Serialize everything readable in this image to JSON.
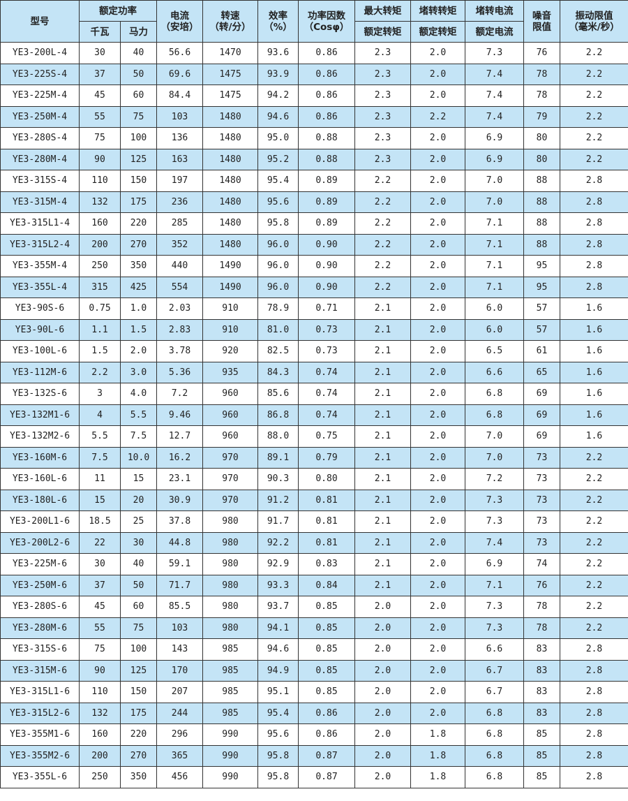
{
  "header": {
    "model": "型号",
    "rated_power": "额定功率",
    "kw": "千瓦",
    "hp": "马力",
    "current": "电流\n（安培）",
    "speed": "转速\n（转/分）",
    "efficiency": "效率\n（%）",
    "power_factor": "功率因数\n（Cosφ）",
    "max_torque_top": "最大转矩",
    "max_torque_bottom": "额定转矩",
    "locked_torque_top": "堵转转矩",
    "locked_torque_bottom": "额定转矩",
    "locked_current_top": "堵转电流",
    "locked_current_bottom": "额定电流",
    "noise": "噪音\n限值",
    "vibration": "振动限值\n（毫米/秒）"
  },
  "rows": [
    [
      "YE3-200L-4",
      "30",
      "40",
      "56.6",
      "1470",
      "93.6",
      "0.86",
      "2.3",
      "2.0",
      "7.3",
      "76",
      "2.2"
    ],
    [
      "YE3-225S-4",
      "37",
      "50",
      "69.6",
      "1475",
      "93.9",
      "0.86",
      "2.3",
      "2.0",
      "7.4",
      "78",
      "2.2"
    ],
    [
      "YE3-225M-4",
      "45",
      "60",
      "84.4",
      "1475",
      "94.2",
      "0.86",
      "2.3",
      "2.0",
      "7.4",
      "78",
      "2.2"
    ],
    [
      "YE3-250M-4",
      "55",
      "75",
      "103",
      "1480",
      "94.6",
      "0.86",
      "2.3",
      "2.2",
      "7.4",
      "79",
      "2.2"
    ],
    [
      "YE3-280S-4",
      "75",
      "100",
      "136",
      "1480",
      "95.0",
      "0.88",
      "2.3",
      "2.0",
      "6.9",
      "80",
      "2.2"
    ],
    [
      "YE3-280M-4",
      "90",
      "125",
      "163",
      "1480",
      "95.2",
      "0.88",
      "2.3",
      "2.0",
      "6.9",
      "80",
      "2.2"
    ],
    [
      "YE3-315S-4",
      "110",
      "150",
      "197",
      "1480",
      "95.4",
      "0.89",
      "2.2",
      "2.0",
      "7.0",
      "88",
      "2.8"
    ],
    [
      "YE3-315M-4",
      "132",
      "175",
      "236",
      "1480",
      "95.6",
      "0.89",
      "2.2",
      "2.0",
      "7.0",
      "88",
      "2.8"
    ],
    [
      "YE3-315L1-4",
      "160",
      "220",
      "285",
      "1480",
      "95.8",
      "0.89",
      "2.2",
      "2.0",
      "7.1",
      "88",
      "2.8"
    ],
    [
      "YE3-315L2-4",
      "200",
      "270",
      "352",
      "1480",
      "96.0",
      "0.90",
      "2.2",
      "2.0",
      "7.1",
      "88",
      "2.8"
    ],
    [
      "YE3-355M-4",
      "250",
      "350",
      "440",
      "1490",
      "96.0",
      "0.90",
      "2.2",
      "2.0",
      "7.1",
      "95",
      "2.8"
    ],
    [
      "YE3-355L-4",
      "315",
      "425",
      "554",
      "1490",
      "96.0",
      "0.90",
      "2.2",
      "2.0",
      "7.1",
      "95",
      "2.8"
    ],
    [
      "YE3-90S-6",
      "0.75",
      "1.0",
      "2.03",
      "910",
      "78.9",
      "0.71",
      "2.1",
      "2.0",
      "6.0",
      "57",
      "1.6"
    ],
    [
      "YE3-90L-6",
      "1.1",
      "1.5",
      "2.83",
      "910",
      "81.0",
      "0.73",
      "2.1",
      "2.0",
      "6.0",
      "57",
      "1.6"
    ],
    [
      "YE3-100L-6",
      "1.5",
      "2.0",
      "3.78",
      "920",
      "82.5",
      "0.73",
      "2.1",
      "2.0",
      "6.5",
      "61",
      "1.6"
    ],
    [
      "YE3-112M-6",
      "2.2",
      "3.0",
      "5.36",
      "935",
      "84.3",
      "0.74",
      "2.1",
      "2.0",
      "6.6",
      "65",
      "1.6"
    ],
    [
      "YE3-132S-6",
      "3",
      "4.0",
      "7.2",
      "960",
      "85.6",
      "0.74",
      "2.1",
      "2.0",
      "6.8",
      "69",
      "1.6"
    ],
    [
      "YE3-132M1-6",
      "4",
      "5.5",
      "9.46",
      "960",
      "86.8",
      "0.74",
      "2.1",
      "2.0",
      "6.8",
      "69",
      "1.6"
    ],
    [
      "YE3-132M2-6",
      "5.5",
      "7.5",
      "12.7",
      "960",
      "88.0",
      "0.75",
      "2.1",
      "2.0",
      "7.0",
      "69",
      "1.6"
    ],
    [
      "YE3-160M-6",
      "7.5",
      "10.0",
      "16.2",
      "970",
      "89.1",
      "0.79",
      "2.1",
      "2.0",
      "7.0",
      "73",
      "2.2"
    ],
    [
      "YE3-160L-6",
      "11",
      "15",
      "23.1",
      "970",
      "90.3",
      "0.80",
      "2.1",
      "2.0",
      "7.2",
      "73",
      "2.2"
    ],
    [
      "YE3-180L-6",
      "15",
      "20",
      "30.9",
      "970",
      "91.2",
      "0.81",
      "2.1",
      "2.0",
      "7.3",
      "73",
      "2.2"
    ],
    [
      "YE3-200L1-6",
      "18.5",
      "25",
      "37.8",
      "980",
      "91.7",
      "0.81",
      "2.1",
      "2.0",
      "7.3",
      "73",
      "2.2"
    ],
    [
      "YE3-200L2-6",
      "22",
      "30",
      "44.8",
      "980",
      "92.2",
      "0.81",
      "2.1",
      "2.0",
      "7.4",
      "73",
      "2.2"
    ],
    [
      "YE3-225M-6",
      "30",
      "40",
      "59.1",
      "980",
      "92.9",
      "0.83",
      "2.1",
      "2.0",
      "6.9",
      "74",
      "2.2"
    ],
    [
      "YE3-250M-6",
      "37",
      "50",
      "71.7",
      "980",
      "93.3",
      "0.84",
      "2.1",
      "2.0",
      "7.1",
      "76",
      "2.2"
    ],
    [
      "YE3-280S-6",
      "45",
      "60",
      "85.5",
      "980",
      "93.7",
      "0.85",
      "2.0",
      "2.0",
      "7.3",
      "78",
      "2.2"
    ],
    [
      "YE3-280M-6",
      "55",
      "75",
      "103",
      "980",
      "94.1",
      "0.85",
      "2.0",
      "2.0",
      "7.3",
      "78",
      "2.2"
    ],
    [
      "YE3-315S-6",
      "75",
      "100",
      "143",
      "985",
      "94.6",
      "0.85",
      "2.0",
      "2.0",
      "6.6",
      "83",
      "2.8"
    ],
    [
      "YE3-315M-6",
      "90",
      "125",
      "170",
      "985",
      "94.9",
      "0.85",
      "2.0",
      "2.0",
      "6.7",
      "83",
      "2.8"
    ],
    [
      "YE3-315L1-6",
      "110",
      "150",
      "207",
      "985",
      "95.1",
      "0.85",
      "2.0",
      "2.0",
      "6.7",
      "83",
      "2.8"
    ],
    [
      "YE3-315L2-6",
      "132",
      "175",
      "244",
      "985",
      "95.4",
      "0.86",
      "2.0",
      "2.0",
      "6.8",
      "83",
      "2.8"
    ],
    [
      "YE3-355M1-6",
      "160",
      "220",
      "296",
      "990",
      "95.6",
      "0.86",
      "2.0",
      "1.8",
      "6.8",
      "85",
      "2.8"
    ],
    [
      "YE3-355M2-6",
      "200",
      "270",
      "365",
      "990",
      "95.8",
      "0.87",
      "2.0",
      "1.8",
      "6.8",
      "85",
      "2.8"
    ],
    [
      "YE3-355L-6",
      "250",
      "350",
      "456",
      "990",
      "95.8",
      "0.87",
      "2.0",
      "1.8",
      "6.8",
      "85",
      "2.8"
    ]
  ],
  "colors": {
    "header_bg": "#c4e4f6",
    "alt_row_bg": "#c4e4f6",
    "border": "#333333"
  }
}
